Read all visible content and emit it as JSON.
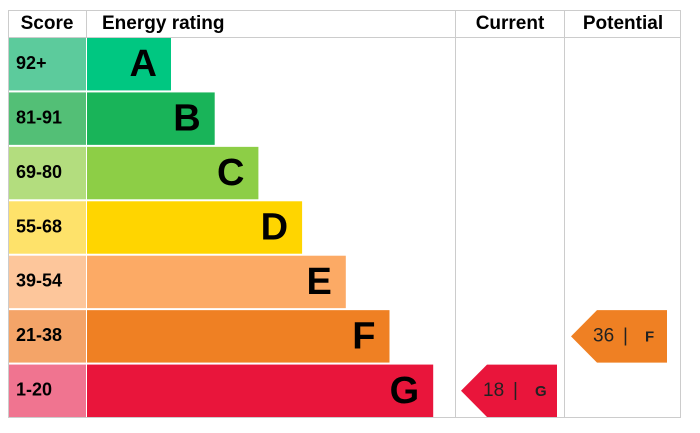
{
  "chart_data": {
    "type": "epc",
    "headers": {
      "score": "Score",
      "rating": "Energy rating",
      "current": "Current",
      "potential": "Potential"
    },
    "bands": [
      {
        "score": "92+",
        "letter": "A",
        "color": "#00c781",
        "score_color": "#5ccb9c"
      },
      {
        "score": "81-91",
        "letter": "B",
        "color": "#19b459",
        "score_color": "#53bf76"
      },
      {
        "score": "69-80",
        "letter": "C",
        "color": "#8dce46",
        "score_color": "#b3dd7e"
      },
      {
        "score": "55-68",
        "letter": "D",
        "color": "#ffd500",
        "score_color": "#fee26a"
      },
      {
        "score": "39-54",
        "letter": "E",
        "color": "#fcaa65",
        "score_color": "#fdc69b"
      },
      {
        "score": "21-38",
        "letter": "F",
        "color": "#ef8023",
        "score_color": "#f4a468"
      },
      {
        "score": "1-20",
        "letter": "G",
        "color": "#e9153b",
        "score_color": "#f07490"
      }
    ],
    "current": {
      "score": 18,
      "separator": "|",
      "letter": "G"
    },
    "potential": {
      "score": 36,
      "separator": "|",
      "letter": "F"
    }
  }
}
